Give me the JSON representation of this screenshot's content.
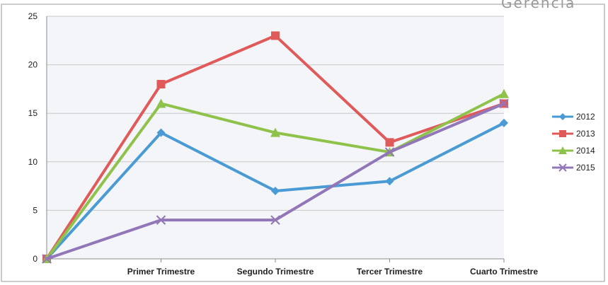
{
  "corner_handwriting": "Gerencia",
  "colors": {
    "2012": "#4a9bd4",
    "2013": "#e05a5a",
    "2014": "#8fc24a",
    "2015": "#9277b8",
    "grid": "#c8c8c8",
    "plot_bg": "#f3f5f9",
    "border": "#9a9a9a"
  },
  "chart_data": {
    "type": "line",
    "categories": [
      "",
      "Primer Trimestre",
      "Segundo Trimestre",
      "Tercer Trimestre",
      "Cuarto Trimestre"
    ],
    "ylim": [
      0,
      25
    ],
    "yticks": [
      0,
      5,
      10,
      15,
      20,
      25
    ],
    "grid": true,
    "legend_position": "right",
    "series": [
      {
        "name": "2012",
        "values": [
          0,
          13,
          7,
          8,
          14
        ],
        "marker": "diamond"
      },
      {
        "name": "2013",
        "values": [
          0,
          18,
          23,
          12,
          16
        ],
        "marker": "square"
      },
      {
        "name": "2014",
        "values": [
          0,
          16,
          13,
          11,
          17
        ],
        "marker": "triangle"
      },
      {
        "name": "2015",
        "values": [
          0,
          4,
          4,
          11,
          16
        ],
        "marker": "x"
      }
    ]
  }
}
